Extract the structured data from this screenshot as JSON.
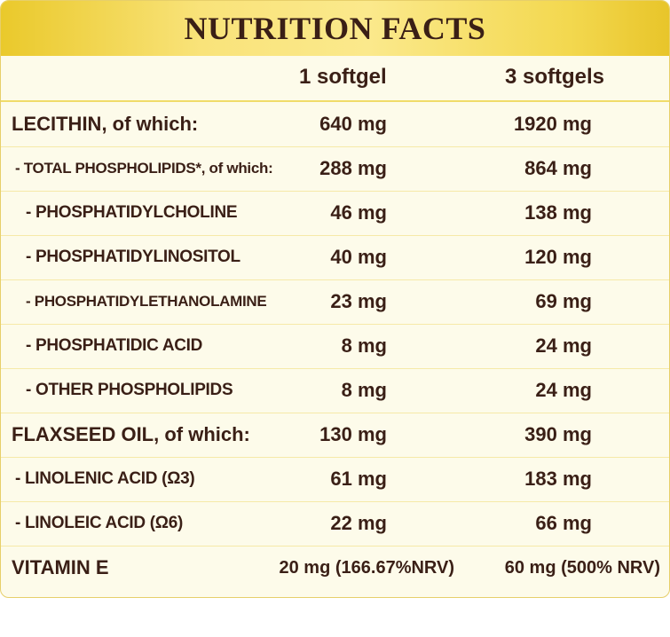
{
  "title": "NUTRITION FACTS",
  "columns": {
    "col1": "1 softgel",
    "col2": "3 softgels"
  },
  "rows": [
    {
      "label": "LECITHIN, of which:",
      "v1": "640 mg",
      "v2": "1920 mg"
    },
    {
      "label": "- TOTAL PHOSPHOLIPIDS*, of which:",
      "v1": "288 mg",
      "v2": "864 mg"
    },
    {
      "label": "- PHOSPHATIDYLCHOLINE",
      "v1": "46 mg",
      "v2": "138 mg"
    },
    {
      "label": "- PHOSPHATIDYLINOSITOL",
      "v1": "40 mg",
      "v2": "120 mg"
    },
    {
      "label": "- PHOSPHATIDYLETHANOLAMINE",
      "v1": "23 mg",
      "v2": "69 mg"
    },
    {
      "label": "- PHOSPHATIDIC ACID",
      "v1": "8 mg",
      "v2": "24 mg"
    },
    {
      "label": "- OTHER PHOSPHOLIPIDS",
      "v1": "8 mg",
      "v2": "24 mg"
    },
    {
      "label": "FLAXSEED OIL, of which:",
      "v1": "130 mg",
      "v2": "390 mg"
    },
    {
      "label": "- LINOLENIC ACID (Ω3)",
      "v1": "61 mg",
      "v2": "183 mg"
    },
    {
      "label": "- LINOLEIC ACID (Ω6)",
      "v1": "22 mg",
      "v2": "66 mg"
    },
    {
      "label": "VITAMIN E",
      "v1": "20 mg (166.67%NRV)",
      "v2": "60 mg (500% NRV)"
    }
  ],
  "colors": {
    "header_gold": "#f3d84f",
    "text_brown": "#3a1f16",
    "panel_cream": "#fdfbea"
  }
}
